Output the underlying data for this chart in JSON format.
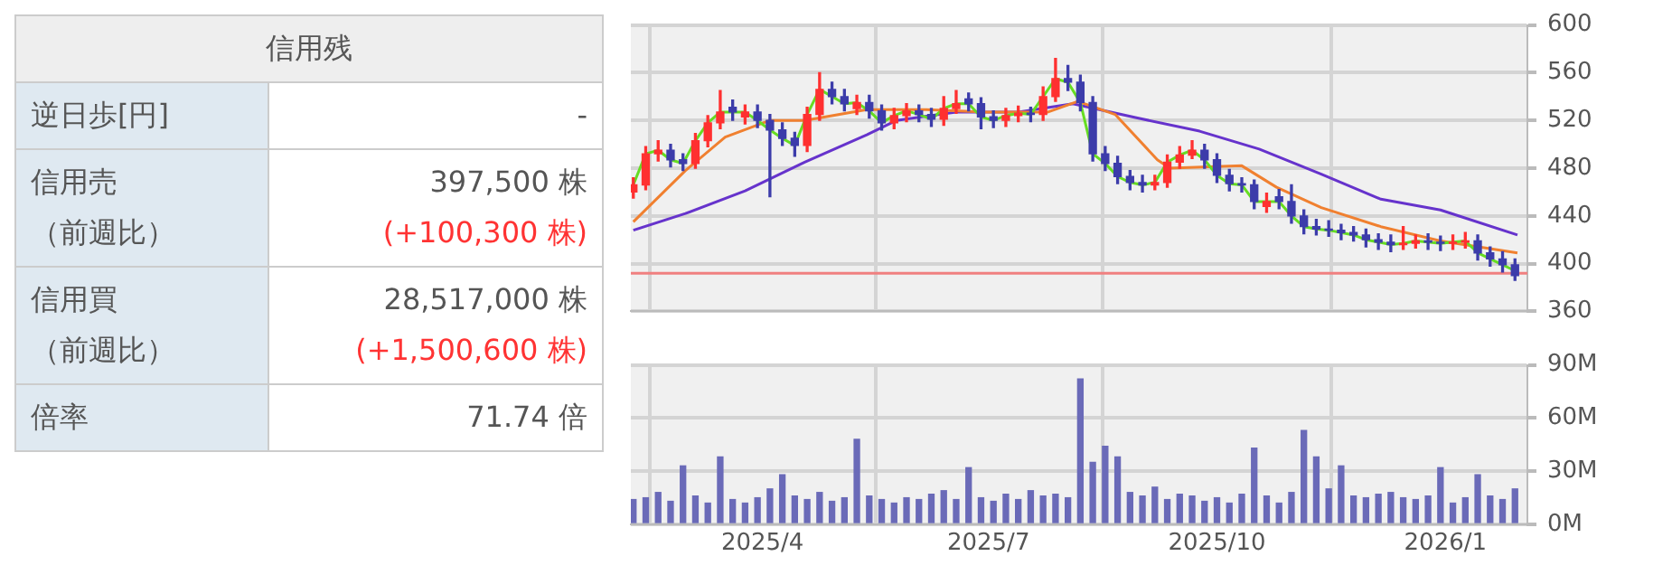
{
  "chart_data": [
    {
      "type": "other",
      "title": "信用残",
      "categories": [
        [
          "逆日歩[円]"
        ],
        [
          "信用売",
          "（前週比）"
        ],
        [
          "信用買",
          "（前週比）"
        ],
        [
          "倍率"
        ]
      ],
      "value_labels": [
        [
          "-"
        ],
        [
          "397,500 株",
          "(+100,300 株)"
        ],
        [
          "28,517,000 株",
          "(+1,500,600 株)"
        ],
        [
          "71.74 倍"
        ]
      ],
      "colors": [
        [
          "#555555"
        ],
        [
          "#555555",
          "#ff3333"
        ],
        [
          "#555555",
          "#ff3333"
        ],
        [
          "#555555"
        ]
      ]
    },
    {
      "type": "candlestick",
      "x": [
        "2025-02-08",
        "2025-02-13",
        "2025-02-18",
        "2025-02-23",
        "2025-02-28",
        "2025-03-05",
        "2025-03-10",
        "2025-03-15",
        "2025-03-20",
        "2025-03-25",
        "2025-03-30",
        "2025-04-04",
        "2025-04-09",
        "2025-04-14",
        "2025-04-19",
        "2025-04-24",
        "2025-04-29",
        "2025-05-04",
        "2025-05-09",
        "2025-05-14",
        "2025-05-19",
        "2025-05-24",
        "2025-05-29",
        "2025-06-03",
        "2025-06-08",
        "2025-06-13",
        "2025-06-18",
        "2025-06-23",
        "2025-06-28",
        "2025-07-03",
        "2025-07-08",
        "2025-07-13",
        "2025-07-18",
        "2025-07-23",
        "2025-07-28",
        "2025-08-02",
        "2025-08-07",
        "2025-08-12",
        "2025-08-17",
        "2025-08-22",
        "2025-08-27",
        "2025-09-01",
        "2025-09-06",
        "2025-09-11",
        "2025-09-16",
        "2025-09-21",
        "2025-09-26",
        "2025-10-01",
        "2025-10-06",
        "2025-10-11",
        "2025-10-16",
        "2025-10-21",
        "2025-10-26",
        "2025-10-31",
        "2025-11-05",
        "2025-11-10",
        "2025-11-15",
        "2025-11-20",
        "2025-11-25",
        "2025-11-30",
        "2025-12-05",
        "2025-12-10",
        "2025-12-15",
        "2025-12-20",
        "2025-12-25",
        "2025-12-30",
        "2026-01-04",
        "2026-01-09",
        "2026-01-14",
        "2026-01-19",
        "2026-01-24",
        "2026-01-29"
      ],
      "ohlc": [
        [
          460,
          472,
          455,
          466
        ],
        [
          466,
          498,
          462,
          492
        ],
        [
          492,
          503,
          486,
          495
        ],
        [
          495,
          500,
          481,
          487
        ],
        [
          487,
          492,
          478,
          484
        ],
        [
          484,
          509,
          480,
          503
        ],
        [
          503,
          524,
          498,
          518
        ],
        [
          518,
          545,
          513,
          527
        ],
        [
          531,
          537,
          520,
          527
        ],
        [
          523,
          533,
          517,
          527
        ],
        [
          527,
          533,
          514,
          520
        ],
        [
          520,
          525,
          456,
          512
        ],
        [
          512,
          518,
          499,
          505
        ],
        [
          505,
          510,
          490,
          499
        ],
        [
          499,
          531,
          494,
          525
        ],
        [
          525,
          560,
          520,
          546
        ],
        [
          546,
          552,
          534,
          540
        ],
        [
          540,
          546,
          528,
          534
        ],
        [
          530,
          541,
          525,
          535
        ],
        [
          535,
          541,
          522,
          528
        ],
        [
          528,
          533,
          512,
          518
        ],
        [
          518,
          530,
          513,
          524
        ],
        [
          524,
          534,
          519,
          528
        ],
        [
          528,
          533,
          519,
          525
        ],
        [
          525,
          530,
          515,
          521
        ],
        [
          521,
          540,
          516,
          530
        ],
        [
          530,
          545,
          526,
          534
        ],
        [
          538,
          543,
          528,
          534
        ],
        [
          534,
          539,
          513,
          523
        ],
        [
          523,
          528,
          514,
          520
        ],
        [
          520,
          530,
          515,
          524
        ],
        [
          524,
          532,
          519,
          526
        ],
        [
          526,
          531,
          519,
          525
        ],
        [
          525,
          548,
          520,
          540
        ],
        [
          540,
          572,
          536,
          555
        ],
        [
          555,
          566,
          545,
          552
        ],
        [
          552,
          558,
          528,
          535
        ],
        [
          535,
          540,
          486,
          492
        ],
        [
          492,
          498,
          478,
          484
        ],
        [
          484,
          490,
          467,
          473
        ],
        [
          473,
          478,
          462,
          468
        ],
        [
          468,
          474,
          460,
          466
        ],
        [
          466,
          474,
          462,
          468
        ],
        [
          468,
          491,
          464,
          485
        ],
        [
          485,
          498,
          480,
          491
        ],
        [
          491,
          503,
          488,
          495
        ],
        [
          495,
          500,
          480,
          487
        ],
        [
          487,
          492,
          468,
          474
        ],
        [
          474,
          479,
          461,
          467
        ],
        [
          467,
          472,
          460,
          466
        ],
        [
          466,
          470,
          446,
          452
        ],
        [
          448,
          459,
          443,
          452
        ],
        [
          456,
          462,
          446,
          452
        ],
        [
          452,
          466,
          434,
          440
        ],
        [
          440,
          445,
          425,
          431
        ],
        [
          431,
          437,
          424,
          429
        ],
        [
          429,
          436,
          423,
          428
        ],
        [
          428,
          433,
          420,
          426
        ],
        [
          426,
          431,
          419,
          424
        ],
        [
          424,
          429,
          414,
          420
        ],
        [
          420,
          425,
          412,
          418
        ],
        [
          418,
          424,
          410,
          416
        ],
        [
          416,
          431,
          412,
          417
        ],
        [
          417,
          424,
          413,
          419
        ],
        [
          419,
          425,
          412,
          418
        ],
        [
          418,
          423,
          411,
          417
        ],
        [
          417,
          424,
          412,
          418
        ],
        [
          418,
          426,
          413,
          419
        ],
        [
          419,
          424,
          403,
          409
        ],
        [
          409,
          414,
          398,
          404
        ],
        [
          404,
          410,
          393,
          399
        ],
        [
          399,
          404,
          386,
          390
        ]
      ],
      "colors": [
        "#ff3030",
        "#ff3030",
        "#ff3030",
        "#3c3caa",
        "#3c3caa",
        "#ff3030",
        "#ff3030",
        "#ff3030",
        "#3c3caa",
        "#ff3030",
        "#3c3caa",
        "#3c3caa",
        "#3c3caa",
        "#3c3caa",
        "#ff3030",
        "#ff3030",
        "#3c3caa",
        "#3c3caa",
        "#ff3030",
        "#3c3caa",
        "#3c3caa",
        "#ff3030",
        "#ff3030",
        "#3c3caa",
        "#3c3caa",
        "#ff3030",
        "#ff3030",
        "#3c3caa",
        "#3c3caa",
        "#3c3caa",
        "#ff3030",
        "#ff3030",
        "#3c3caa",
        "#ff3030",
        "#ff3030",
        "#3c3caa",
        "#3c3caa",
        "#3c3caa",
        "#3c3caa",
        "#3c3caa",
        "#3c3caa",
        "#3c3caa",
        "#ff3030",
        "#ff3030",
        "#ff3030",
        "#ff3030",
        "#3c3caa",
        "#3c3caa",
        "#3c3caa",
        "#3c3caa",
        "#3c3caa",
        "#ff3030",
        "#3c3caa",
        "#3c3caa",
        "#3c3caa",
        "#3c3caa",
        "#3c3caa",
        "#3c3caa",
        "#3c3caa",
        "#3c3caa",
        "#3c3caa",
        "#3c3caa",
        "#ff3030",
        "#ff3030",
        "#3c3caa",
        "#3c3caa",
        "#ff3030",
        "#ff3030",
        "#3c3caa",
        "#3c3caa",
        "#3c3caa",
        "#3c3caa"
      ],
      "series": [
        {
          "type": "line",
          "color": "#66dd22",
          "values": [
            466,
            492,
            495,
            487,
            484,
            503,
            518,
            527,
            527,
            527,
            520,
            512,
            505,
            499,
            525,
            546,
            540,
            534,
            535,
            528,
            518,
            524,
            528,
            525,
            521,
            530,
            534,
            534,
            523,
            520,
            524,
            526,
            525,
            540,
            555,
            552,
            535,
            492,
            484,
            473,
            468,
            466,
            468,
            485,
            491,
            495,
            487,
            474,
            467,
            466,
            452,
            452,
            452,
            440,
            431,
            429,
            428,
            426,
            424,
            420,
            418,
            416,
            417,
            419,
            418,
            417,
            418,
            419,
            409,
            404,
            399,
            394
          ]
        },
        {
          "type": "line",
          "color": "#f08030",
          "x": [
            "2025-02-08",
            "2025-03-01",
            "2025-03-17",
            "2025-04-04",
            "2025-04-18",
            "2025-05-13",
            "2025-06-06",
            "2025-06-30",
            "2025-07-25",
            "2025-08-06",
            "2025-08-21",
            "2025-09-07",
            "2025-09-12",
            "2025-10-11",
            "2025-10-25",
            "2025-11-12",
            "2025-12-06",
            "2025-12-30",
            "2026-01-30"
          ],
          "values": [
            435,
            478,
            506,
            520,
            520,
            529,
            529,
            527,
            527,
            536,
            525,
            487,
            480,
            482,
            464,
            447,
            431,
            419,
            409
          ]
        },
        {
          "type": "line",
          "color": "#6633cc",
          "x": [
            "2025-02-08",
            "2025-03-01",
            "2025-03-25",
            "2025-04-18",
            "2025-05-13",
            "2025-05-25",
            "2025-06-18",
            "2025-07-13",
            "2025-08-04",
            "2025-08-30",
            "2025-09-24",
            "2025-10-18",
            "2025-11-12",
            "2025-12-06",
            "2025-12-30",
            "2026-01-30"
          ],
          "values": [
            428,
            442,
            461,
            485,
            508,
            520,
            527,
            527,
            534,
            522,
            511,
            496,
            475,
            454,
            445,
            424
          ]
        }
      ],
      "xlim": [
        "2025-02-07",
        "2026-02-03"
      ],
      "xticks": [
        {
          "value": "2025-04-01",
          "label": null
        },
        {
          "value": "2025-07-01",
          "label": null
        },
        {
          "value": "2025-10-01",
          "label": null
        },
        {
          "value": "2026-01-01",
          "label": null
        }
      ],
      "ylim": [
        360,
        600
      ],
      "yticks": [
        360,
        400,
        440,
        480,
        520,
        560,
        600
      ],
      "ref_lines": [
        {
          "axis": "y",
          "value": 392,
          "color": "#f08080"
        }
      ],
      "grid": true,
      "tick_labels": "y"
    },
    {
      "type": "bar",
      "color": "#6a6ab8",
      "x": [
        "2025-02-08",
        "2025-02-13",
        "2025-02-18",
        "2025-02-23",
        "2025-02-28",
        "2025-03-05",
        "2025-03-10",
        "2025-03-15",
        "2025-03-20",
        "2025-03-25",
        "2025-03-30",
        "2025-04-04",
        "2025-04-09",
        "2025-04-14",
        "2025-04-19",
        "2025-04-24",
        "2025-04-29",
        "2025-05-04",
        "2025-05-09",
        "2025-05-14",
        "2025-05-19",
        "2025-05-24",
        "2025-05-29",
        "2025-06-03",
        "2025-06-08",
        "2025-06-13",
        "2025-06-18",
        "2025-06-23",
        "2025-06-28",
        "2025-07-03",
        "2025-07-08",
        "2025-07-13",
        "2025-07-18",
        "2025-07-23",
        "2025-07-28",
        "2025-08-02",
        "2025-08-07",
        "2025-08-12",
        "2025-08-17",
        "2025-08-22",
        "2025-08-27",
        "2025-09-01",
        "2025-09-06",
        "2025-09-11",
        "2025-09-16",
        "2025-09-21",
        "2025-09-26",
        "2025-10-01",
        "2025-10-06",
        "2025-10-11",
        "2025-10-16",
        "2025-10-21",
        "2025-10-26",
        "2025-10-31",
        "2025-11-05",
        "2025-11-10",
        "2025-11-15",
        "2025-11-20",
        "2025-11-25",
        "2025-11-30",
        "2025-12-05",
        "2025-12-10",
        "2025-12-15",
        "2025-12-20",
        "2025-12-25",
        "2025-12-30",
        "2026-01-04",
        "2026-01-09",
        "2026-01-14",
        "2026-01-19",
        "2026-01-24",
        "2026-01-29"
      ],
      "values": [
        14,
        15,
        18,
        13,
        33,
        16,
        12,
        38,
        14,
        12,
        15,
        20,
        28,
        16,
        14,
        18,
        13,
        15,
        48,
        16,
        14,
        12,
        15,
        14,
        17,
        19,
        14,
        32,
        15,
        13,
        17,
        14,
        19,
        16,
        17,
        15,
        82,
        35,
        44,
        38,
        18,
        16,
        21,
        14,
        17,
        16,
        13,
        15,
        12,
        17,
        43,
        16,
        12,
        18,
        53,
        38,
        20,
        33,
        16,
        15,
        17,
        18,
        15,
        14,
        16,
        32,
        12,
        15,
        28,
        16,
        14,
        20
      ],
      "xlim": [
        "2025-02-07",
        "2026-02-03"
      ],
      "xticks": [
        {
          "value": "2025-04-01",
          "label": "2025/4"
        },
        {
          "value": "2025-07-01",
          "label": "2025/7"
        },
        {
          "value": "2025-10-01",
          "label": "2025/10"
        },
        {
          "value": "2026-01-01",
          "label": "2026/1"
        }
      ],
      "ylim": [
        0,
        90
      ],
      "yticks": [
        {
          "value": 0,
          "label": "0M"
        },
        {
          "value": 30,
          "label": "30M"
        },
        {
          "value": 60,
          "label": "60M"
        },
        {
          "value": 90,
          "label": "90M"
        }
      ],
      "grid": true
    }
  ]
}
